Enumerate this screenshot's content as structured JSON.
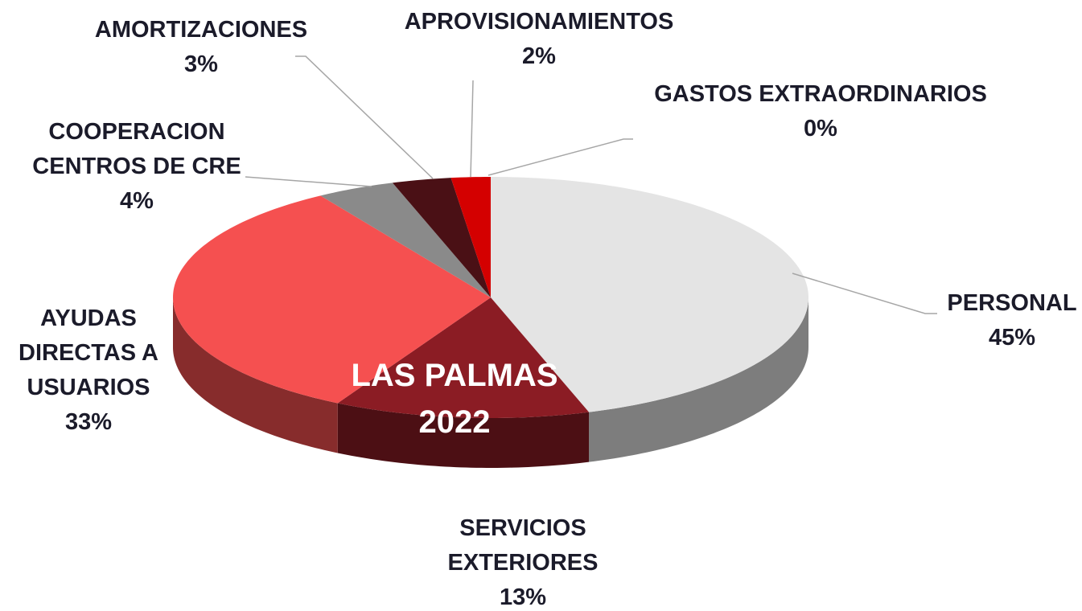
{
  "chart_data": {
    "type": "pie",
    "title": "LAS PALMAS 2022",
    "categories": [
      "PERSONAL",
      "SERVICIOS EXTERIORES",
      "AYUDAS DIRECTAS A USUARIOS",
      "COOPERACION CENTROS DE CRE",
      "AMORTIZACIONES",
      "APROVISIONAMIENTOS",
      "GASTOS EXTRAORDINARIOS"
    ],
    "values": [
      45,
      13,
      33,
      4,
      3,
      2,
      0
    ],
    "value_labels": [
      "45%",
      "13%",
      "33%",
      "4%",
      "3%",
      "2%",
      "0%"
    ],
    "colors": [
      "#e4e4e4",
      "#8b1c24",
      "#f55050",
      "#8a8a8a",
      "#4a1015",
      "#d40000",
      "#ff9999"
    ]
  }
}
